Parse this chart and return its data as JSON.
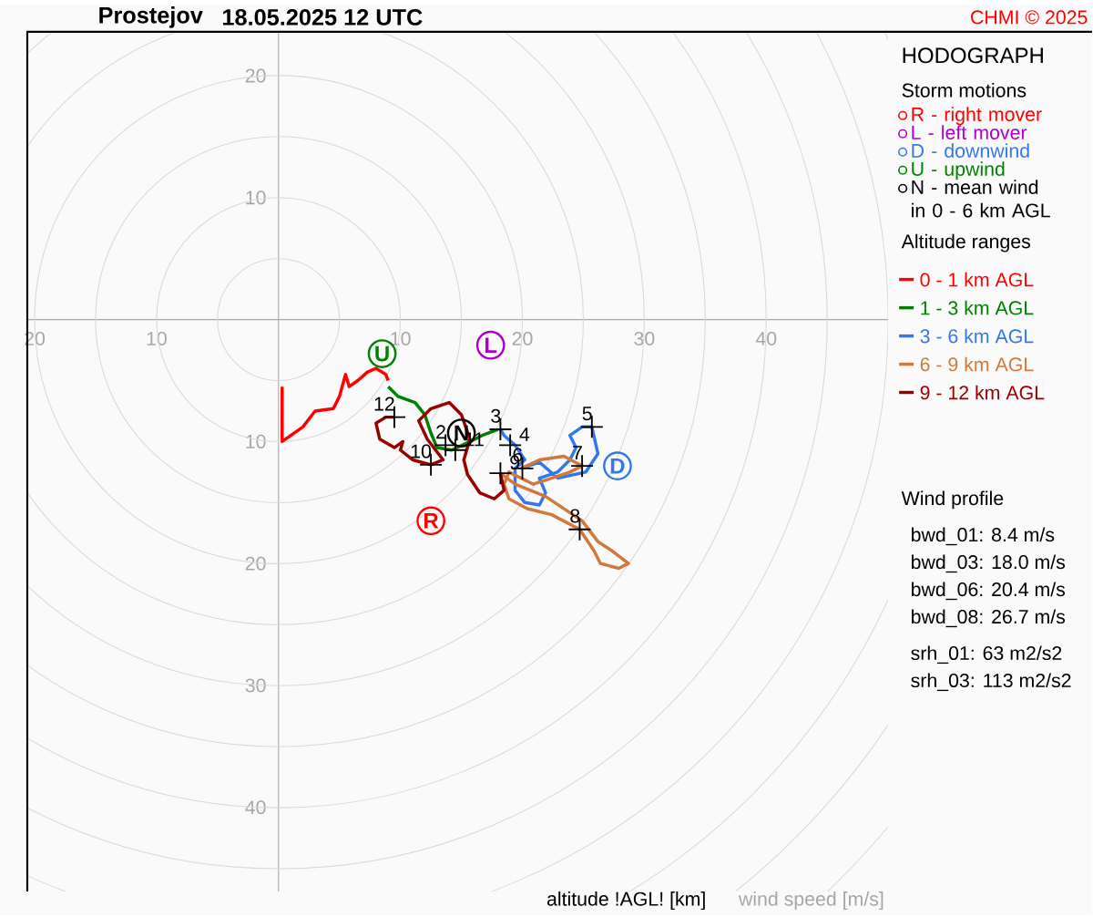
{
  "chart_data": {
    "type": "line",
    "title": "Prostejov",
    "subtitle": "18.05.2025 12 UTC",
    "xlabel": "wind speed [m/s]",
    "legend_title": "Storm motions",
    "xlim": [
      -20.6,
      50
    ],
    "ylim": [
      -46.9,
      23.6
    ],
    "xticks": [
      {
        "value": -20,
        "label": "20"
      },
      {
        "value": -10,
        "label": "10"
      },
      10,
      20,
      30,
      40
    ],
    "yticks": [
      20,
      10,
      {
        "value": -10,
        "label": "10"
      },
      {
        "value": -20,
        "label": "20"
      },
      {
        "value": -30,
        "label": "30"
      },
      {
        "value": -40,
        "label": "40"
      }
    ],
    "legend": "right",
    "series": [
      {
        "name": "0 - 1 km AGL",
        "color": "#ff0000",
        "x": [
          0.3,
          0.3,
          2.0,
          3.0,
          4.5,
          5.0,
          5.5,
          5.8,
          6.5,
          7.3,
          8.0,
          8.8,
          9.0
        ],
        "values": [
          -5.5,
          -10.0,
          -8.8,
          -7.5,
          -7.3,
          -6.3,
          -4.5,
          -5.5,
          -5.0,
          -4.3,
          -4.0,
          -4.5,
          -5.0
        ]
      },
      {
        "name": "1 - 3 km AGL",
        "color": "#008000",
        "x": [
          9.0,
          9.8,
          11.2,
          12.0,
          12.5,
          13.0,
          14.2,
          15.7,
          16.7,
          18.0
        ],
        "values": [
          -5.5,
          -6.3,
          -6.8,
          -7.8,
          -9.3,
          -10.5,
          -10.7,
          -10.0,
          -9.5,
          -9.0
        ]
      },
      {
        "name": "3 - 6 km AGL",
        "color": "#3377ee",
        "x": [
          18.2,
          18.5,
          19.4,
          20.2,
          19.4,
          19.4,
          20.2,
          21.4,
          21.9,
          21.4,
          22.9,
          23.9,
          24.4,
          23.9,
          24.9,
          25.7,
          26.2,
          25.2,
          22.9,
          21.4,
          19.9
        ],
        "values": [
          -9.0,
          -9.5,
          -10.3,
          -11.5,
          -12.2,
          -14.0,
          -15.0,
          -15.2,
          -14.2,
          -13.0,
          -12.5,
          -11.5,
          -10.5,
          -9.5,
          -8.8,
          -8.8,
          -11.0,
          -12.5,
          -13.0,
          -11.7,
          -12.2
        ]
      },
      {
        "name": "6 - 9 km AGL",
        "color": "#d2783c",
        "x": [
          19.9,
          21.4,
          23.4,
          24.9,
          23.9,
          22.4,
          20.9,
          18.9,
          18.5,
          18.9,
          20.4,
          22.4,
          24.7,
          25.9,
          26.4,
          27.9,
          28.7,
          27.4,
          26.2,
          24.9,
          21.9,
          19.4,
          18.2
        ],
        "values": [
          -12.2,
          -11.5,
          -11.2,
          -12.0,
          -12.5,
          -13.0,
          -13.5,
          -12.5,
          -13.5,
          -14.7,
          -15.5,
          -16.0,
          -17.2,
          -19.0,
          -20.0,
          -20.4,
          -20.0,
          -19.0,
          -18.2,
          -16.5,
          -14.5,
          -13.5,
          -12.6
        ]
      },
      {
        "name": "9 - 12 km AGL",
        "color": "#990000",
        "x": [
          18.2,
          18.5,
          17.7,
          16.5,
          15.5,
          15.2,
          15.7,
          15.0,
          14.0,
          12.5,
          11.5,
          12.2,
          13.5,
          12.5,
          11.0,
          10.0,
          10.2,
          9.5,
          8.3,
          8.0,
          8.8,
          9.5
        ],
        "values": [
          -12.6,
          -14.0,
          -14.7,
          -14.2,
          -12.7,
          -11.5,
          -9.8,
          -7.8,
          -6.8,
          -7.3,
          -8.3,
          -9.8,
          -11.5,
          -11.9,
          -11.5,
          -10.7,
          -10.0,
          -10.5,
          -9.8,
          -8.5,
          -8.0,
          -8.0
        ]
      },
      {
        "type": "scatter",
        "marker": "circle",
        "name": "R - right mover",
        "color": "#ff0000",
        "x": [
          12.5
        ],
        "values": [
          -16.5
        ],
        "value_labels": [
          "R"
        ]
      },
      {
        "type": "scatter",
        "marker": "circle",
        "name": "L - left mover",
        "color": "#aa00cc",
        "x": [
          17.4
        ],
        "values": [
          -2.1
        ],
        "value_labels": [
          "L"
        ]
      },
      {
        "type": "scatter",
        "marker": "circle",
        "name": "D - downwind",
        "color": "#3377ee",
        "x": [
          27.8
        ],
        "values": [
          -12.0
        ],
        "value_labels": [
          "D"
        ]
      },
      {
        "type": "scatter",
        "marker": "circle",
        "name": "U - upwind",
        "color": "#008000",
        "x": [
          8.5
        ],
        "values": [
          -2.8
        ],
        "value_labels": [
          "U"
        ]
      },
      {
        "type": "scatter",
        "marker": "circle",
        "name": "N - mean wind in 0 - 6 km AGL",
        "color": "#000000",
        "x": [
          15.0
        ],
        "values": [
          -9.3
        ],
        "value_labels": [
          "N"
        ]
      },
      {
        "type": "scatter",
        "marker": "cross",
        "color": "#000000",
        "x": [
          13.7,
          18.2,
          19.0,
          25.7,
          20.0,
          24.9,
          24.7,
          18.2,
          12.5,
          14.5,
          9.5
        ],
        "values": [
          -10.3,
          -9.0,
          -10.3,
          -8.8,
          -12.2,
          -12.0,
          -17.2,
          -12.6,
          -11.9,
          -10.7,
          -8.0
        ]
      }
    ],
    "annotations": [
      "HODOGRAPH",
      "Altitude ranges",
      "Wind profile",
      "bwd_01: 8.4 m/s",
      "bwd_03: 18.0 m/s",
      "bwd_06: 20.4 m/s",
      "bwd_08: 26.7 m/s",
      "srh_01: 63 m2/s2",
      "srh_03: 113 m2/s2",
      "CHMI © 2025",
      "altitude !AGL! [km]",
      {
        "text": "2",
        "x": 13.7,
        "y": -10.3
      },
      {
        "text": "3",
        "x": 18.2,
        "y": -9.0
      },
      {
        "text": "4",
        "x": 19.0,
        "y": -10.3
      },
      {
        "text": "5",
        "x": 25.7,
        "y": -8.8
      },
      {
        "text": "6",
        "x": 20.0,
        "y": -12.2
      },
      {
        "text": "7",
        "x": 24.9,
        "y": -12.0
      },
      {
        "text": "8",
        "x": 24.7,
        "y": -17.2
      },
      {
        "text": "9",
        "x": 18.2,
        "y": -12.6
      },
      {
        "text": "10",
        "x": 12.5,
        "y": -11.9
      },
      {
        "text": "11",
        "x": 14.5,
        "y": -10.7
      },
      {
        "text": "12",
        "x": 9.5,
        "y": -8.0
      }
    ]
  }
}
